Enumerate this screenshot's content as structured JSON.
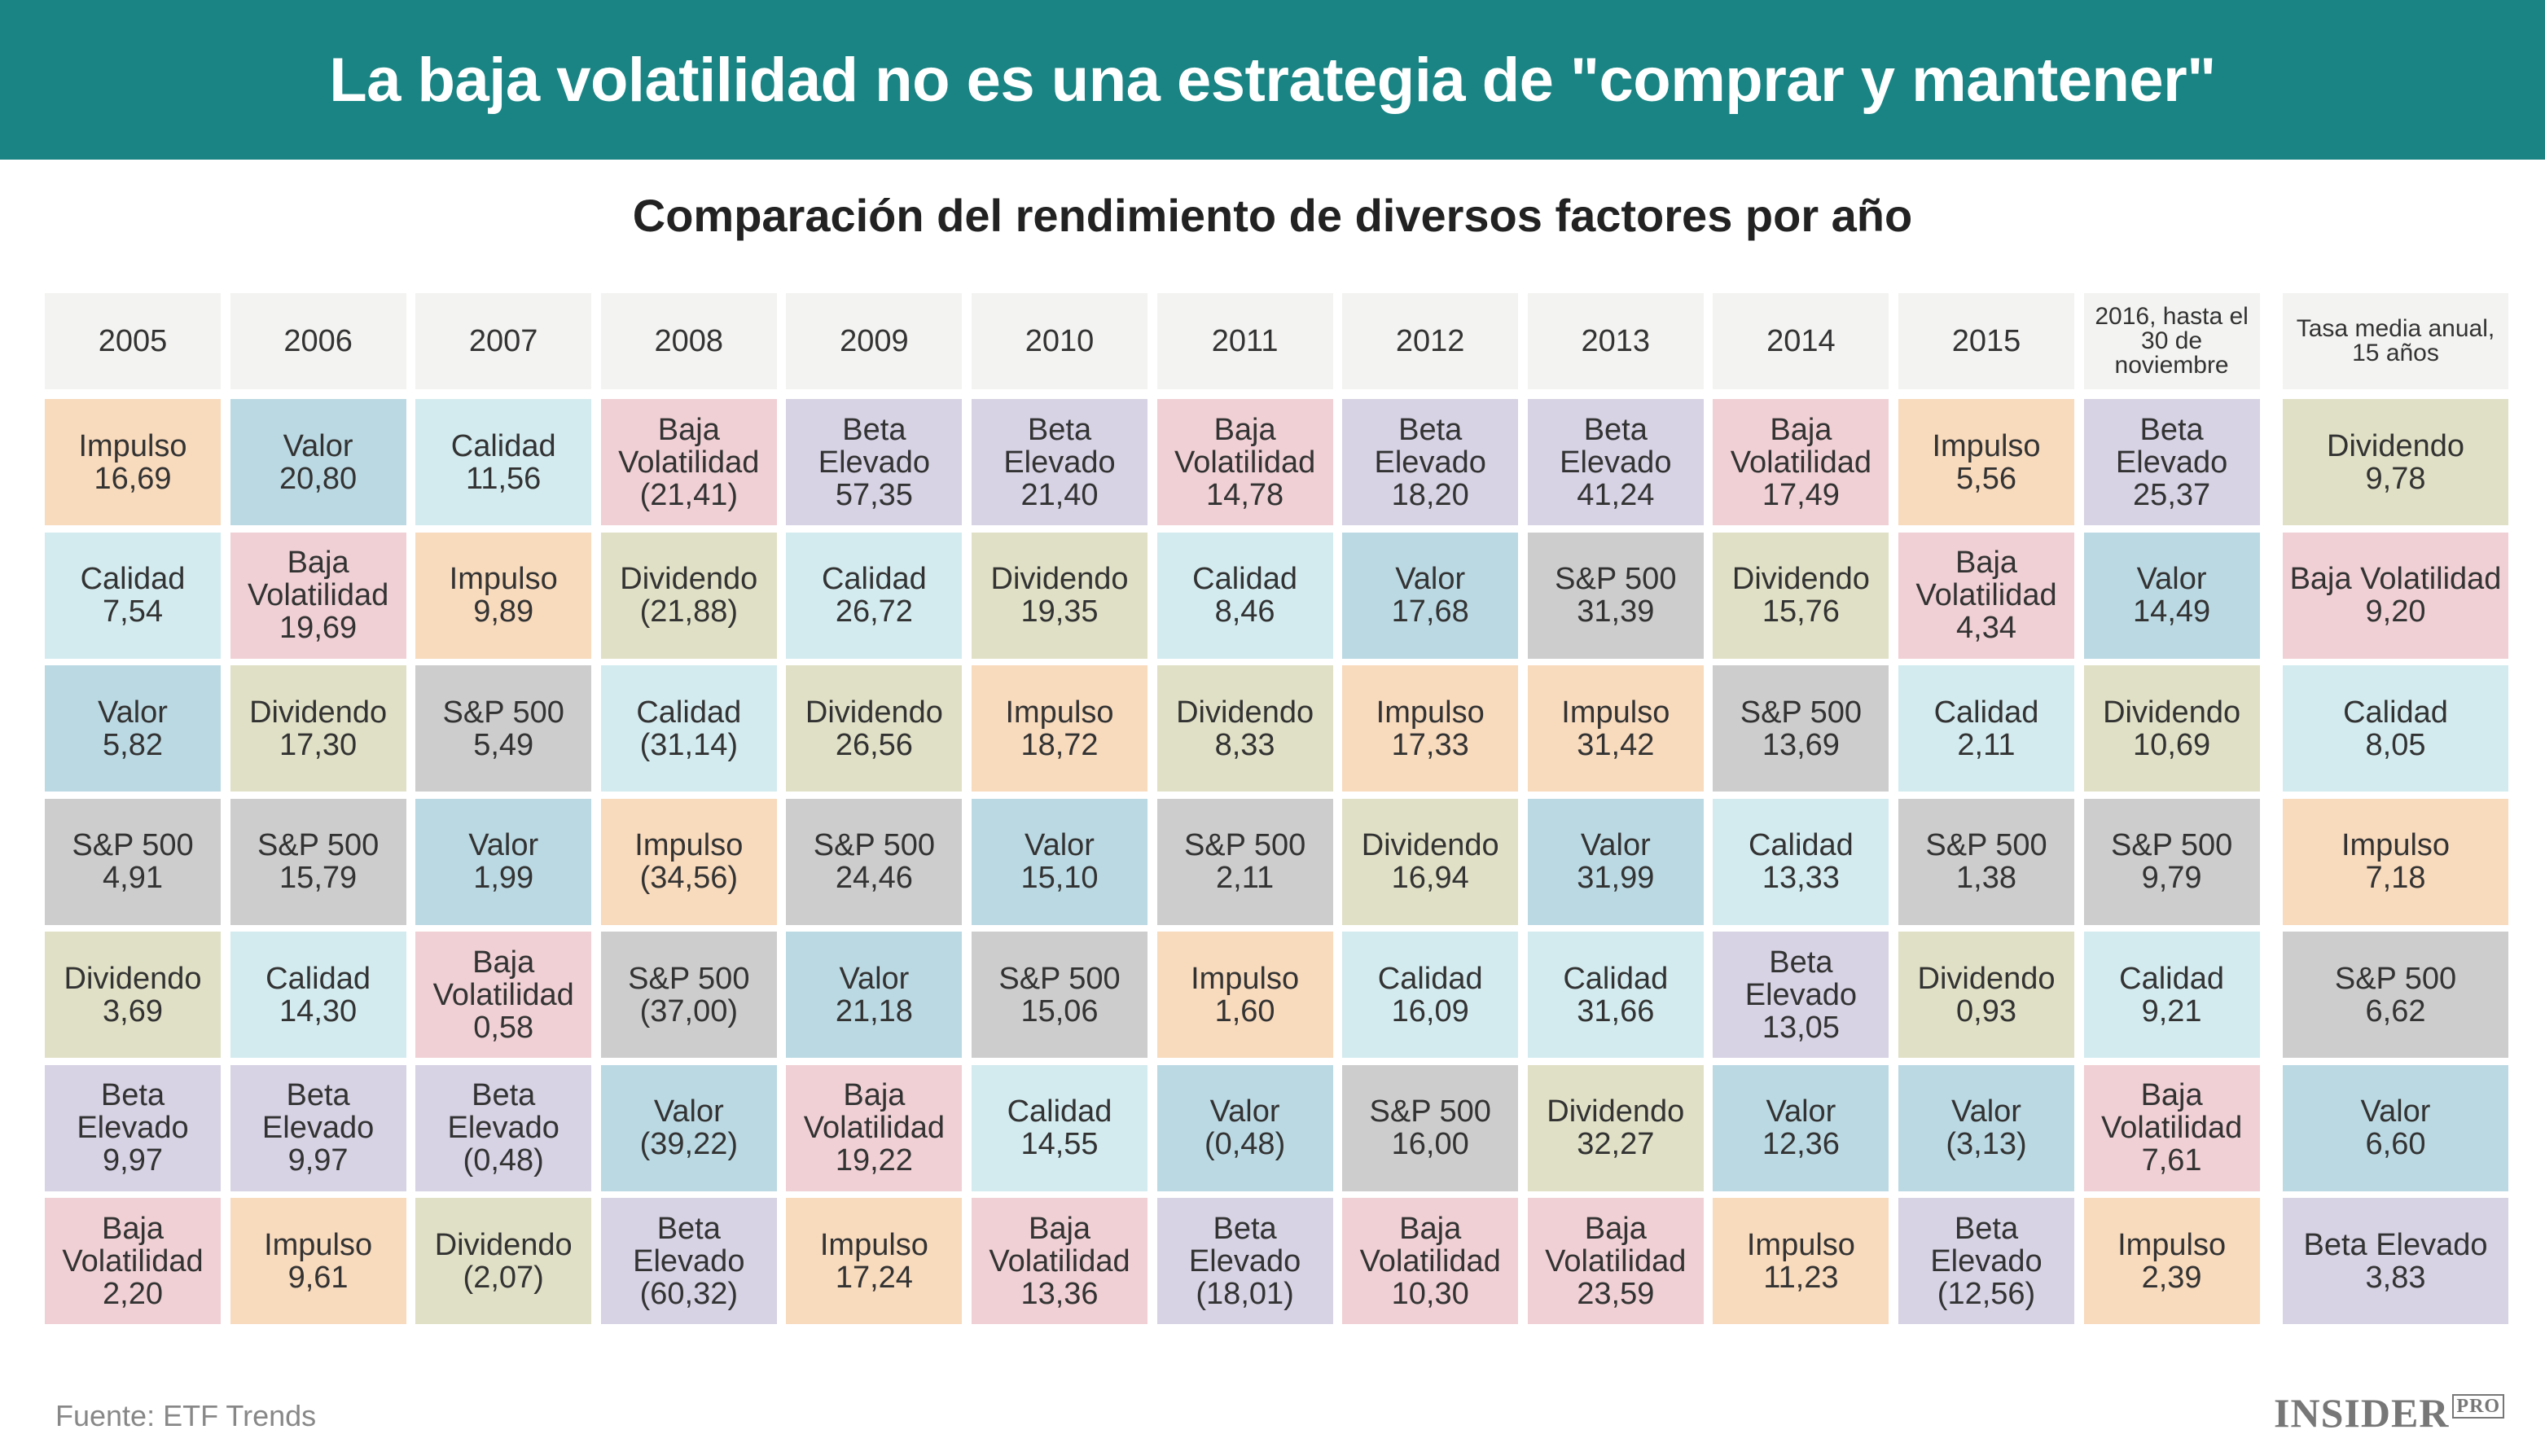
{
  "title": "La baja volatilidad no es una estrategia de \"comprar y mantener\"",
  "chart_data": {
    "type": "table",
    "title": "Comparación del rendimiento de diversos factores por año",
    "colors": {
      "Impulso": "#f8dabd",
      "Valor": "#bbd9e3",
      "Calidad": "#d3ebef",
      "Baja Volatilidad": "#f0d0d4",
      "Beta Elevado": "#d7d2e4",
      "Dividendo": "#e0e0c6",
      "S&P 500": "#cdcdcd"
    },
    "columns": [
      {
        "header": "2005",
        "cells": [
          [
            "Impulso",
            "16,69"
          ],
          [
            "Calidad",
            "7,54"
          ],
          [
            "Valor",
            "5,82"
          ],
          [
            "S&P 500",
            "4,91"
          ],
          [
            "Dividendo",
            "3,69"
          ],
          [
            "Beta Elevado",
            "9,97"
          ],
          [
            "Baja Volatilidad",
            "2,20"
          ]
        ]
      },
      {
        "header": "2006",
        "cells": [
          [
            "Valor",
            "20,80"
          ],
          [
            "Baja Volatilidad",
            "19,69"
          ],
          [
            "Dividendo",
            "17,30"
          ],
          [
            "S&P 500",
            "15,79"
          ],
          [
            "Calidad",
            "14,30"
          ],
          [
            "Beta Elevado",
            "9,97"
          ],
          [
            "Impulso",
            "9,61"
          ]
        ]
      },
      {
        "header": "2007",
        "cells": [
          [
            "Calidad",
            "11,56"
          ],
          [
            "Impulso",
            "9,89"
          ],
          [
            "S&P 500",
            "5,49"
          ],
          [
            "Valor",
            "1,99"
          ],
          [
            "Baja Volatilidad",
            "0,58"
          ],
          [
            "Beta Elevado",
            "(0,48)"
          ],
          [
            "Dividendo",
            "(2,07)"
          ]
        ]
      },
      {
        "header": "2008",
        "cells": [
          [
            "Baja Volatilidad",
            "(21,41)"
          ],
          [
            "Dividendo",
            "(21,88)"
          ],
          [
            "Calidad",
            "(31,14)"
          ],
          [
            "Impulso",
            "(34,56)"
          ],
          [
            "S&P 500",
            "(37,00)"
          ],
          [
            "Valor",
            "(39,22)"
          ],
          [
            "Beta Elevado",
            "(60,32)"
          ]
        ]
      },
      {
        "header": "2009",
        "cells": [
          [
            "Beta Elevado",
            "57,35"
          ],
          [
            "Calidad",
            "26,72"
          ],
          [
            "Dividendo",
            "26,56"
          ],
          [
            "S&P 500",
            "24,46"
          ],
          [
            "Valor",
            "21,18"
          ],
          [
            "Baja Volatilidad",
            "19,22"
          ],
          [
            "Impulso",
            "17,24"
          ]
        ]
      },
      {
        "header": "2010",
        "cells": [
          [
            "Beta Elevado",
            "21,40"
          ],
          [
            "Dividendo",
            "19,35"
          ],
          [
            "Impulso",
            "18,72"
          ],
          [
            "Valor",
            "15,10"
          ],
          [
            "S&P 500",
            "15,06"
          ],
          [
            "Calidad",
            "14,55"
          ],
          [
            "Baja Volatilidad",
            "13,36"
          ]
        ]
      },
      {
        "header": "2011",
        "cells": [
          [
            "Baja Volatilidad",
            "14,78"
          ],
          [
            "Calidad",
            "8,46"
          ],
          [
            "Dividendo",
            "8,33"
          ],
          [
            "S&P 500",
            "2,11"
          ],
          [
            "Impulso",
            "1,60"
          ],
          [
            "Valor",
            "(0,48)"
          ],
          [
            "Beta Elevado",
            "(18,01)"
          ]
        ]
      },
      {
        "header": "2012",
        "cells": [
          [
            "Beta Elevado",
            "18,20"
          ],
          [
            "Valor",
            "17,68"
          ],
          [
            "Impulso",
            "17,33"
          ],
          [
            "Dividendo",
            "16,94"
          ],
          [
            "Calidad",
            "16,09"
          ],
          [
            "S&P 500",
            "16,00"
          ],
          [
            "Baja Volatilidad",
            "10,30"
          ]
        ]
      },
      {
        "header": "2013",
        "cells": [
          [
            "Beta Elevado",
            "41,24"
          ],
          [
            "S&P 500",
            "31,39"
          ],
          [
            "Impulso",
            "31,42"
          ],
          [
            "Valor",
            "31,99"
          ],
          [
            "Calidad",
            "31,66"
          ],
          [
            "Dividendo",
            "32,27"
          ],
          [
            "Baja Volatilidad",
            "23,59"
          ]
        ]
      },
      {
        "header": "2014",
        "cells": [
          [
            "Baja Volatilidad",
            "17,49"
          ],
          [
            "Dividendo",
            "15,76"
          ],
          [
            "S&P 500",
            "13,69"
          ],
          [
            "Calidad",
            "13,33"
          ],
          [
            "Beta Elevado",
            "13,05"
          ],
          [
            "Valor",
            "12,36"
          ],
          [
            "Impulso",
            "11,23"
          ]
        ]
      },
      {
        "header": "2015",
        "cells": [
          [
            "Impulso",
            "5,56"
          ],
          [
            "Baja Volatilidad",
            "4,34"
          ],
          [
            "Calidad",
            "2,11"
          ],
          [
            "S&P 500",
            "1,38"
          ],
          [
            "Dividendo",
            "0,93"
          ],
          [
            "Valor",
            "(3,13)"
          ],
          [
            "Beta Elevado",
            "(12,56)"
          ]
        ]
      },
      {
        "header": "2016, hasta el 30 de noviembre",
        "cells": [
          [
            "Beta Elevado",
            "25,37"
          ],
          [
            "Valor",
            "14,49"
          ],
          [
            "Dividendo",
            "10,69"
          ],
          [
            "S&P 500",
            "9,79"
          ],
          [
            "Calidad",
            "9,21"
          ],
          [
            "Baja Volatilidad",
            "7,61"
          ],
          [
            "Impulso",
            "2,39"
          ]
        ]
      },
      {
        "header": "Tasa media anual, 15 años",
        "cells": [
          [
            "Dividendo",
            "9,78"
          ],
          [
            "Baja Volatilidad",
            "9,20"
          ],
          [
            "Calidad",
            "8,05"
          ],
          [
            "Impulso",
            "7,18"
          ],
          [
            "S&P 500",
            "6,62"
          ],
          [
            "Valor",
            "6,60"
          ],
          [
            "Beta Elevado",
            "3,83"
          ]
        ]
      }
    ]
  },
  "footer": {
    "source": "Fuente: ETF Trends",
    "logo": "INSIDER PRO"
  }
}
